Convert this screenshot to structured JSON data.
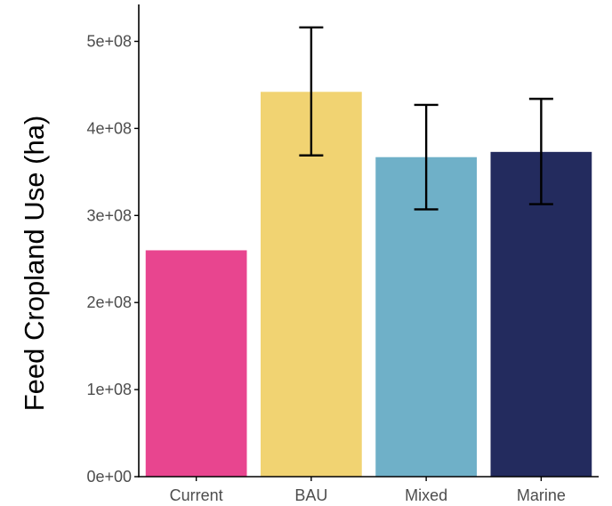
{
  "chart_data": {
    "type": "bar",
    "title": "",
    "xlabel": "",
    "ylabel": "Feed Cropland Use (ha)",
    "categories": [
      "Current",
      "BAU",
      "Mixed",
      "Marine"
    ],
    "values": [
      260000000,
      442000000,
      367000000,
      373000000
    ],
    "error_low": [
      null,
      369000000,
      307000000,
      313000000
    ],
    "error_high": [
      null,
      516000000,
      427000000,
      434000000
    ],
    "colors": [
      "#e8458f",
      "#f1d372",
      "#6fb0c8",
      "#232b5e"
    ],
    "ylim": [
      0,
      540000000
    ],
    "yticks": [
      0,
      100000000,
      200000000,
      300000000,
      400000000,
      500000000
    ],
    "ytick_labels": [
      "0e+00",
      "1e+08",
      "2e+08",
      "3e+08",
      "4e+08",
      "5e+08"
    ],
    "grid": false,
    "legend": "none"
  }
}
